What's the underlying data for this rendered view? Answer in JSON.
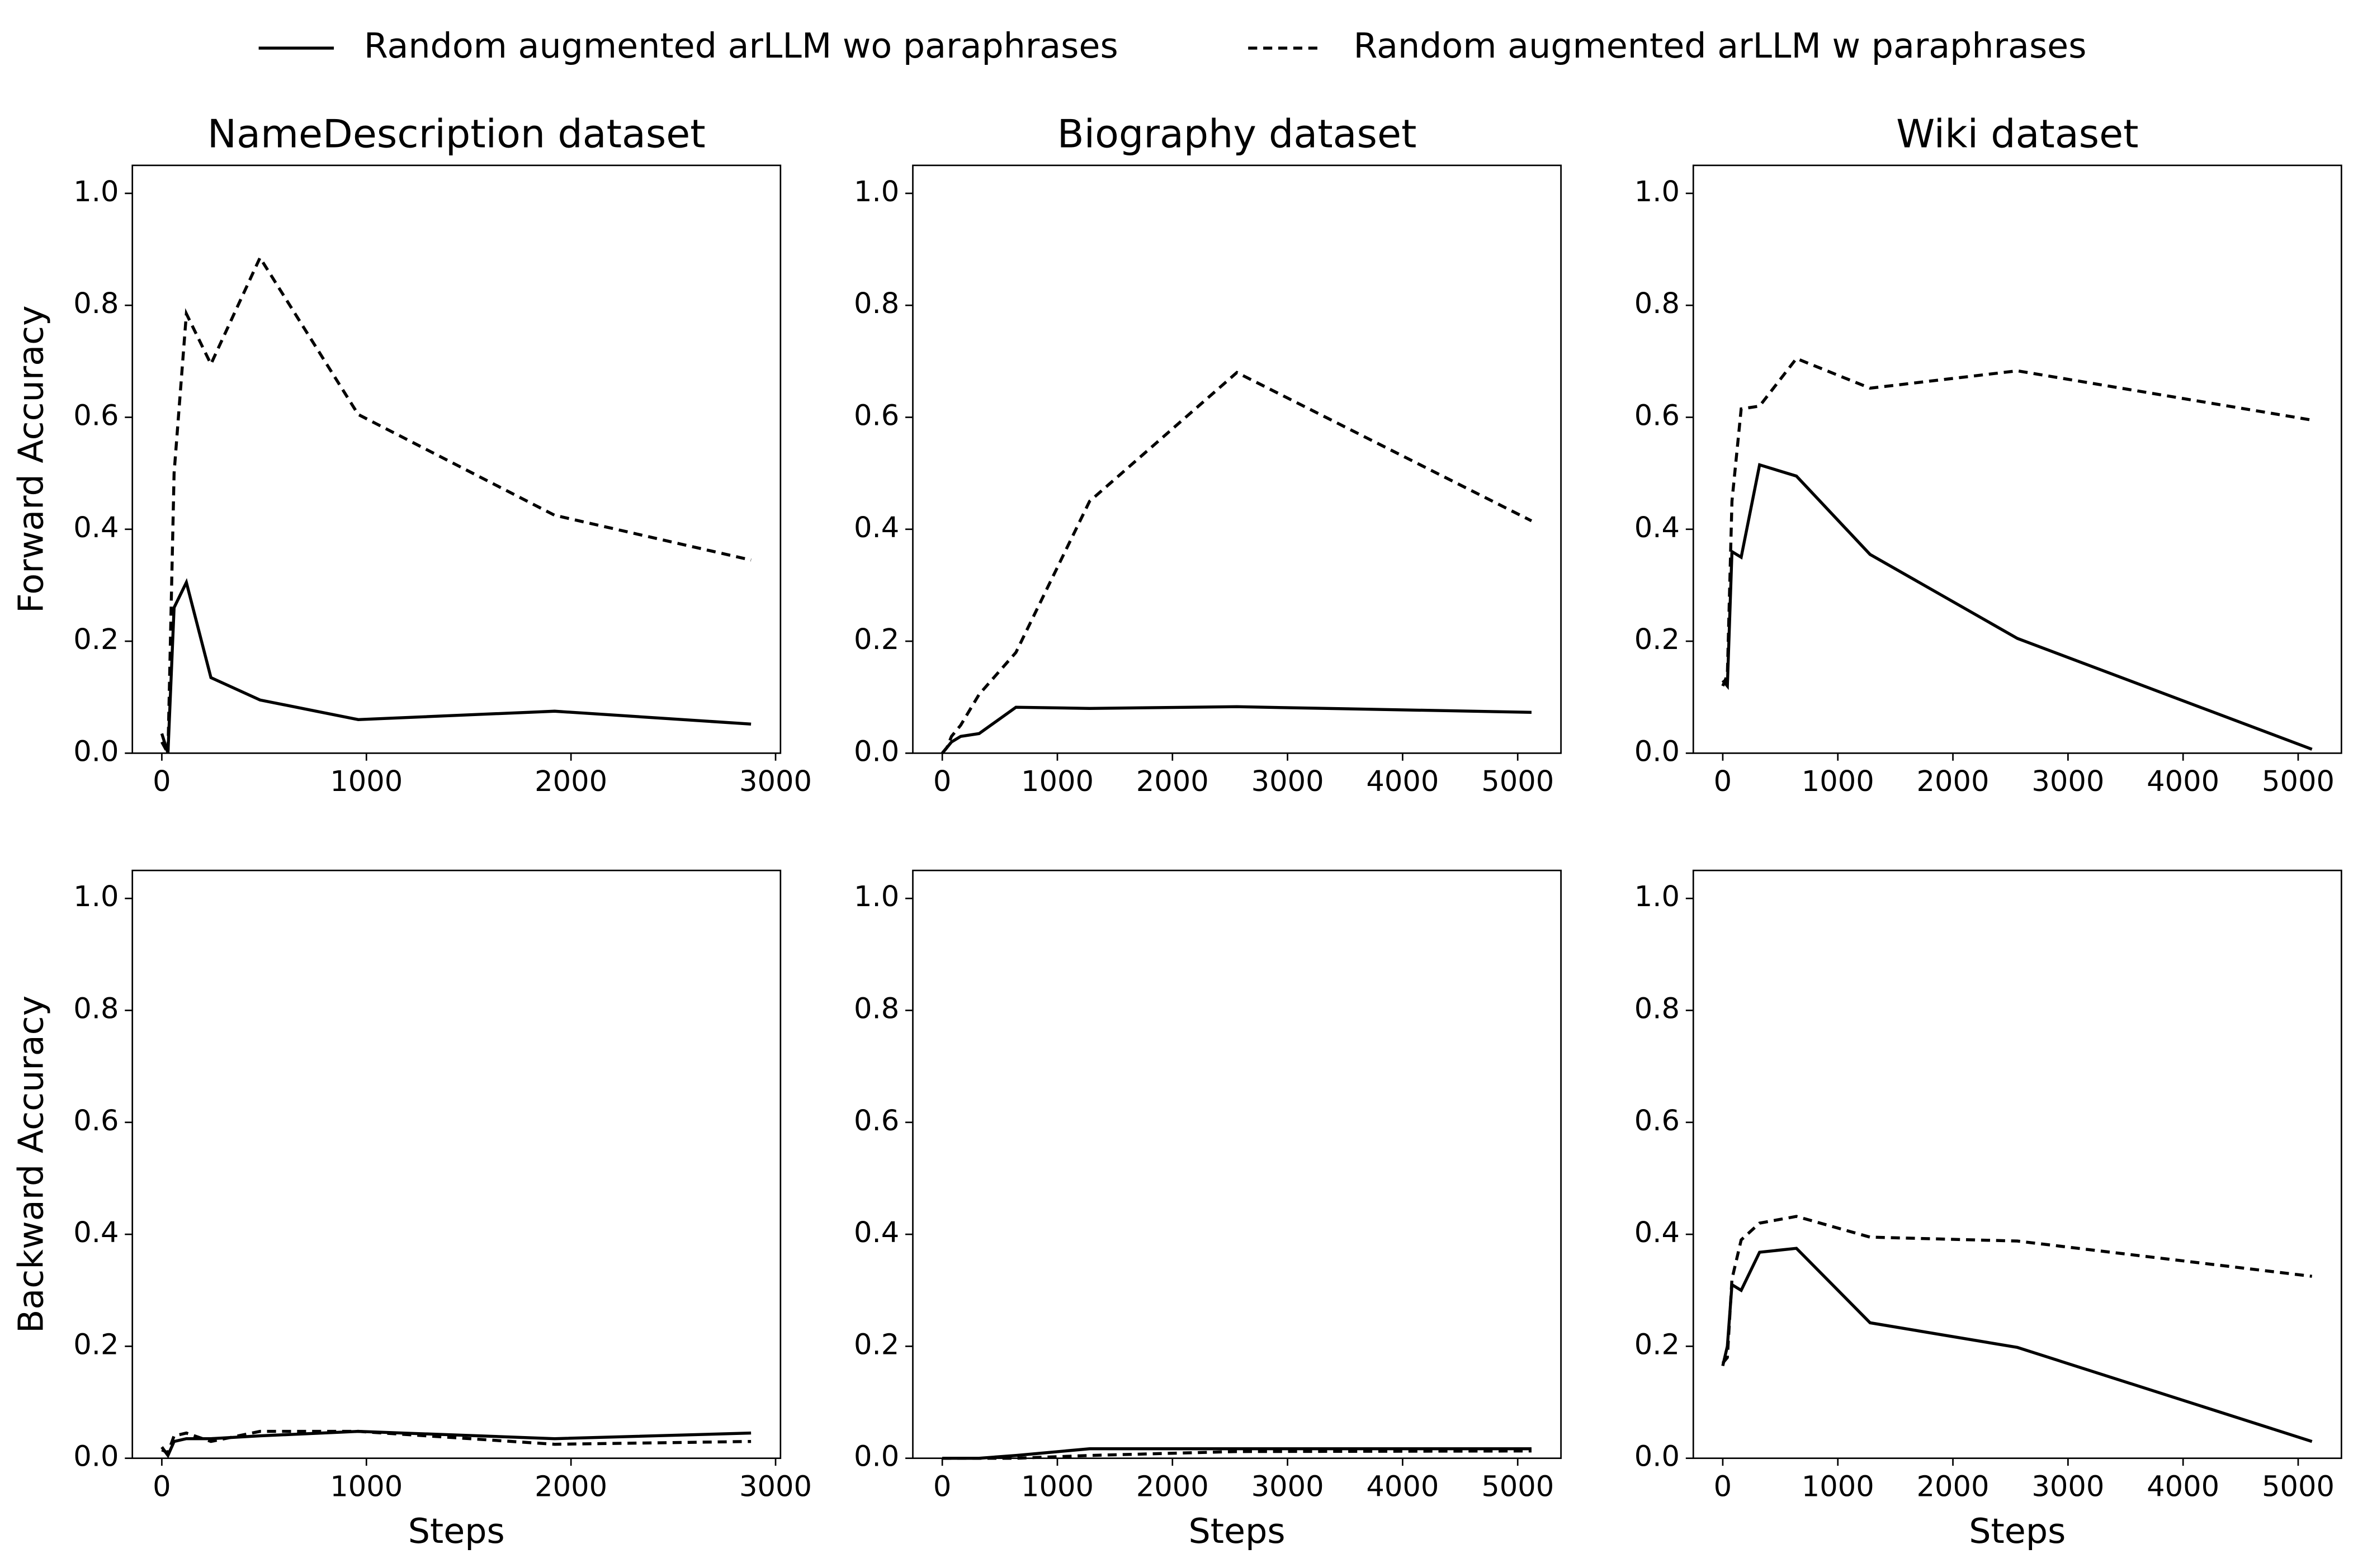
{
  "chart_data": [
    {
      "type": "line",
      "title": "NameDescription dataset",
      "y_label": "Forward Accuracy",
      "x": [
        0,
        30,
        60,
        120,
        240,
        480,
        960,
        1920,
        2880
      ],
      "series": [
        {
          "name": "Random augmented arLLM wo paraphrases",
          "color": "#000000",
          "linestyle": "solid",
          "values": [
            0.035,
            0.0,
            0.26,
            0.305,
            0.135,
            0.095,
            0.06,
            0.075,
            0.052
          ]
        },
        {
          "name": "Random augmented arLLM w paraphrases",
          "color": "#000000",
          "linestyle": "dashed",
          "values": [
            0.02,
            0.0,
            0.5,
            0.785,
            0.695,
            0.885,
            0.605,
            0.425,
            0.345
          ]
        }
      ],
      "xlim": [
        -144,
        3024
      ],
      "xticks": [
        0,
        1000,
        2000,
        3000
      ],
      "ylim": [
        0,
        1.05
      ],
      "yticks": [
        {
          "value": 0,
          "label": "0.0"
        },
        0.2,
        0.4,
        0.6,
        0.8,
        {
          "value": 1,
          "label": "1.0"
        }
      ]
    },
    {
      "type": "line",
      "title": "Biography dataset",
      "x": [
        0,
        40,
        80,
        160,
        320,
        640,
        1280,
        2560,
        5120
      ],
      "series": [
        {
          "name": "Random augmented arLLM wo paraphrases",
          "color": "#000000",
          "linestyle": "solid",
          "values": [
            0,
            0.01,
            0.02,
            0.03,
            0.035,
            0.082,
            0.08,
            0.083,
            0.073
          ]
        },
        {
          "name": "Random augmented arLLM w paraphrases",
          "color": "#000000",
          "linestyle": "dashed",
          "values": [
            0,
            0.01,
            0.03,
            0.05,
            0.105,
            0.18,
            0.45,
            0.68,
            0.415
          ]
        }
      ],
      "xlim": [
        -256,
        5376
      ],
      "xticks": [
        0,
        1000,
        2000,
        3000,
        4000,
        5000
      ],
      "ylim": [
        0,
        1.05
      ],
      "yticks": [
        {
          "value": 0,
          "label": "0.0"
        },
        0.2,
        0.4,
        0.6,
        0.8,
        {
          "value": 1,
          "label": "1.0"
        }
      ]
    },
    {
      "type": "line",
      "title": "Wiki dataset",
      "x": [
        0,
        40,
        80,
        160,
        320,
        640,
        1280,
        2560,
        5120
      ],
      "series": [
        {
          "name": "Random augmented arLLM wo paraphrases",
          "color": "#000000",
          "linestyle": "solid",
          "values": [
            0.13,
            0.12,
            0.36,
            0.35,
            0.515,
            0.495,
            0.355,
            0.205,
            0.007
          ]
        },
        {
          "name": "Random augmented arLLM w paraphrases",
          "color": "#000000",
          "linestyle": "dashed",
          "values": [
            0.12,
            0.14,
            0.45,
            0.615,
            0.62,
            0.705,
            0.652,
            0.683,
            0.595
          ]
        }
      ],
      "xlim": [
        -256,
        5376
      ],
      "xticks": [
        0,
        1000,
        2000,
        3000,
        4000,
        5000
      ],
      "ylim": [
        0,
        1.05
      ],
      "yticks": [
        {
          "value": 0,
          "label": "0.0"
        },
        0.2,
        0.4,
        0.6,
        0.8,
        {
          "value": 1,
          "label": "1.0"
        }
      ]
    },
    {
      "type": "line",
      "y_label": "Backward Accuracy",
      "x_label": "Steps",
      "x": [
        0,
        30,
        60,
        120,
        240,
        480,
        960,
        1920,
        2880
      ],
      "series": [
        {
          "name": "Random augmented arLLM wo paraphrases",
          "color": "#000000",
          "linestyle": "solid",
          "values": [
            0.02,
            0.005,
            0.03,
            0.035,
            0.035,
            0.04,
            0.048,
            0.035,
            0.045
          ]
        },
        {
          "name": "Random augmented arLLM w paraphrases",
          "color": "#000000",
          "linestyle": "dashed",
          "values": [
            0.015,
            0.01,
            0.04,
            0.045,
            0.03,
            0.048,
            0.048,
            0.025,
            0.03
          ]
        }
      ],
      "xlim": [
        -144,
        3024
      ],
      "xticks": [
        0,
        1000,
        2000,
        3000
      ],
      "ylim": [
        0,
        1.05
      ],
      "yticks": [
        {
          "value": 0,
          "label": "0.0"
        },
        0.2,
        0.4,
        0.6,
        0.8,
        {
          "value": 1,
          "label": "1.0"
        }
      ]
    },
    {
      "type": "line",
      "x_label": "Steps",
      "x": [
        0,
        40,
        80,
        160,
        320,
        640,
        1280,
        2560,
        5120
      ],
      "series": [
        {
          "name": "Random augmented arLLM wo paraphrases",
          "color": "#000000",
          "linestyle": "solid",
          "values": [
            0,
            0,
            0,
            0,
            0,
            0.005,
            0.017,
            0.017,
            0.017
          ]
        },
        {
          "name": "Random augmented arLLM w paraphrases",
          "color": "#000000",
          "linestyle": "dashed",
          "values": [
            0,
            0,
            0,
            0,
            0,
            0,
            0.005,
            0.012,
            0.013
          ]
        }
      ],
      "xlim": [
        -256,
        5376
      ],
      "xticks": [
        0,
        1000,
        2000,
        3000,
        4000,
        5000
      ],
      "ylim": [
        0,
        1.05
      ],
      "yticks": [
        {
          "value": 0,
          "label": "0.0"
        },
        0.2,
        0.4,
        0.6,
        0.8,
        {
          "value": 1,
          "label": "1.0"
        }
      ]
    },
    {
      "type": "line",
      "x_label": "Steps",
      "x": [
        0,
        40,
        80,
        160,
        320,
        640,
        1280,
        2560,
        5120
      ],
      "series": [
        {
          "name": "Random augmented arLLM wo paraphrases",
          "color": "#000000",
          "linestyle": "solid",
          "values": [
            0.165,
            0.2,
            0.31,
            0.3,
            0.368,
            0.375,
            0.242,
            0.198,
            0.03
          ]
        },
        {
          "name": "Random augmented arLLM w paraphrases",
          "color": "#000000",
          "linestyle": "dashed",
          "values": [
            0.17,
            0.18,
            0.32,
            0.39,
            0.42,
            0.432,
            0.395,
            0.388,
            0.325
          ]
        }
      ],
      "xlim": [
        -256,
        5376
      ],
      "xticks": [
        0,
        1000,
        2000,
        3000,
        4000,
        5000
      ],
      "ylim": [
        0,
        1.05
      ],
      "yticks": [
        {
          "value": 0,
          "label": "0.0"
        },
        0.2,
        0.4,
        0.6,
        0.8,
        {
          "value": 1,
          "label": "1.0"
        }
      ]
    }
  ]
}
